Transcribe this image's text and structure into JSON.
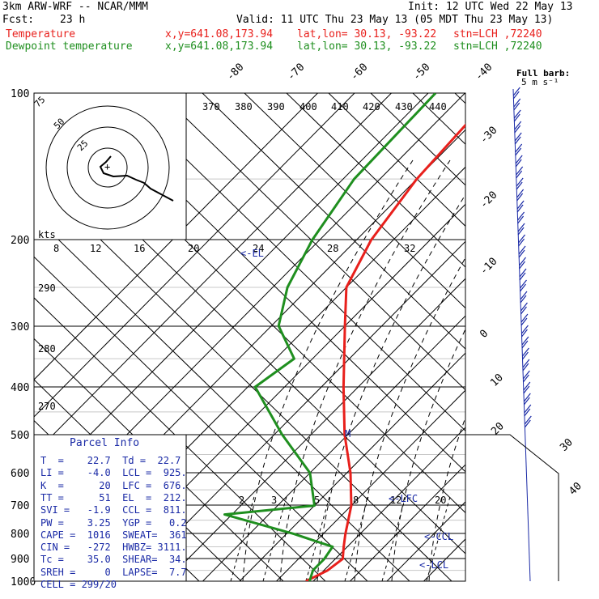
{
  "header": {
    "model": "3km ARW-WRF -- NCAR/MMM",
    "init": "Init: 12 UTC Wed 22 May 13",
    "fcst_label": "Fcst:",
    "fcst_value": "23 h",
    "valid": "Valid: 11 UTC Thu 23 May 13 (05 MDT Thu 23 May 13)",
    "temp_label": "Temperature",
    "dew_label": "Dewpoint temperature",
    "xy": "x,y=641.08,173.94",
    "latlon": "lat,lon= 30.13, -93.22",
    "stn": "stn=LCH ,72240",
    "full_barb_1": "Full barb:",
    "full_barb_2": "5 m s⁻¹"
  },
  "colors": {
    "temperature": "#e8201c",
    "dewpoint": "#1f8f1f",
    "grid": "#000000",
    "parcel": "#1a2aa6"
  },
  "chart_data": {
    "type": "line",
    "pressure_levels": [
      "100",
      "200",
      "300",
      "400",
      "500",
      "600",
      "700",
      "800",
      "900",
      "1000"
    ],
    "skew_iso_labels": [
      "-80",
      "-70",
      "-60",
      "-50",
      "-40",
      "-30",
      "-20",
      "-10",
      "0",
      "10",
      "20",
      "30",
      "40"
    ],
    "theta_labels": [
      "370",
      "380",
      "390",
      "400",
      "410",
      "420",
      "430",
      "440",
      "290",
      "280",
      "270"
    ],
    "mixing_ratio_labels": [
      "2",
      "3",
      "5",
      "8",
      "12",
      "20"
    ],
    "hodo_speed_labels": [
      "kts",
      "8",
      "12",
      "16",
      "20",
      "24",
      "28",
      "32"
    ],
    "hodo_ring_labels": [
      "75",
      "50",
      "25"
    ],
    "series": [
      {
        "name": "Temperature",
        "points": [
          [
            100,
            -62
          ],
          [
            150,
            -60
          ],
          [
            200,
            -56
          ],
          [
            250,
            -50
          ],
          [
            300,
            -40
          ],
          [
            400,
            -24
          ],
          [
            500,
            -11
          ],
          [
            600,
            1
          ],
          [
            700,
            10
          ],
          [
            800,
            16
          ],
          [
            850,
            19
          ],
          [
            900,
            22
          ],
          [
            950,
            21
          ],
          [
            1000,
            18
          ]
        ]
      },
      {
        "name": "Dewpoint temperature",
        "points": [
          [
            100,
            -78
          ],
          [
            150,
            -77
          ],
          [
            200,
            -72
          ],
          [
            250,
            -66
          ],
          [
            300,
            -58
          ],
          [
            350,
            -45
          ],
          [
            400,
            -48
          ],
          [
            500,
            -28
          ],
          [
            600,
            -10
          ],
          [
            700,
            0
          ],
          [
            730,
            -22
          ],
          [
            800,
            2
          ],
          [
            850,
            16
          ],
          [
            900,
            17
          ],
          [
            950,
            17
          ],
          [
            1000,
            19
          ]
        ]
      }
    ],
    "annotations": [
      "<-EL",
      "M",
      "<-LFC",
      "<-CCL",
      "<-LCL"
    ]
  },
  "parcel_info": {
    "title": "Parcel Info",
    "rows": [
      "T  =    22.7  Td =  22.7",
      "LI =    -4.0  LCL =  925.",
      "K  =      20  LFC =  676.",
      "TT =      51  EL  =  212.",
      "SVI =   -1.9  CCL =  811.",
      "PW =    3.25  YGP =   0.2",
      "CAPE =  1016  SWEAT=  361",
      "CIN =   -272  HWBZ= 3111.",
      "Tc =    35.0  SHEAR=  34.",
      "SREH =     0  LAPSE=  7.7",
      "CELL = 299/20"
    ]
  }
}
